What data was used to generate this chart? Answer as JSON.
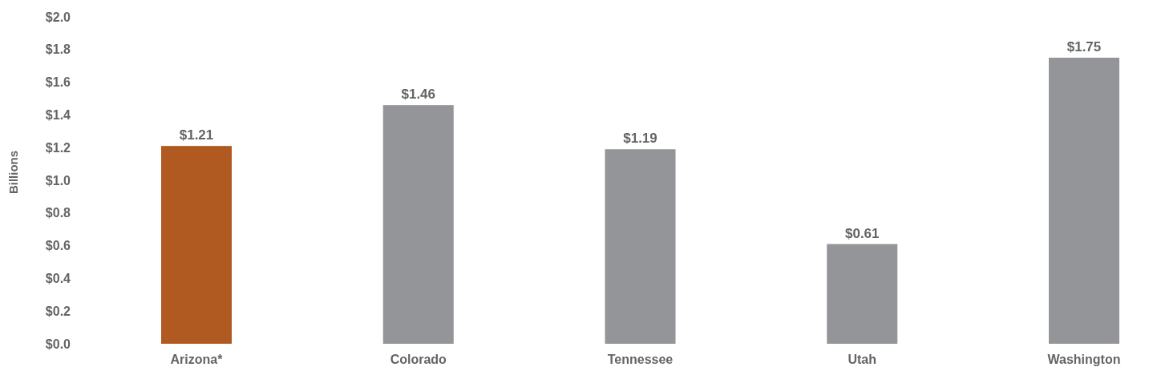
{
  "chart_data": {
    "type": "bar",
    "ylabel": "Billions",
    "categories": [
      "Arizona*",
      "Colorado",
      "Tennessee",
      "Utah",
      "Washington"
    ],
    "values": [
      1.21,
      1.46,
      1.19,
      0.61,
      1.75
    ],
    "colors": [
      "#b05a22",
      "#939598",
      "#939598",
      "#939598",
      "#939598"
    ],
    "value_labels": [
      "$1.21",
      "$1.46",
      "$1.19",
      "$0.61",
      "$1.75"
    ],
    "ylim": [
      0,
      2
    ],
    "yticks": [
      {
        "value": 0,
        "label": "$0.0"
      },
      {
        "value": 0.2,
        "label": "$0.2"
      },
      {
        "value": 0.4,
        "label": "$0.4"
      },
      {
        "value": 0.6,
        "label": "$0.6"
      },
      {
        "value": 0.8,
        "label": "$0.8"
      },
      {
        "value": 1,
        "label": "$1.0"
      },
      {
        "value": 1.2,
        "label": "$1.2"
      },
      {
        "value": 1.4,
        "label": "$1.4"
      },
      {
        "value": 1.6,
        "label": "$1.6"
      },
      {
        "value": 1.8,
        "label": "$1.8"
      },
      {
        "value": 2,
        "label": "$2.0"
      }
    ],
    "grid": false
  }
}
